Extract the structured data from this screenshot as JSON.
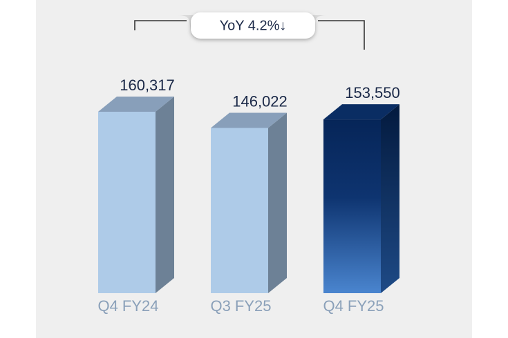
{
  "chart_data": {
    "type": "bar3d",
    "annotation": "YoY 4.2%↓",
    "categories": [
      "Q4 FY24",
      "Q3 FY25",
      "Q4 FY25"
    ],
    "values": [
      160317,
      146022,
      153550
    ],
    "value_labels": [
      "160,317",
      "146,022",
      "153,550"
    ],
    "colors": [
      "#aecbe8",
      "#aecbe8",
      "#062558"
    ]
  }
}
